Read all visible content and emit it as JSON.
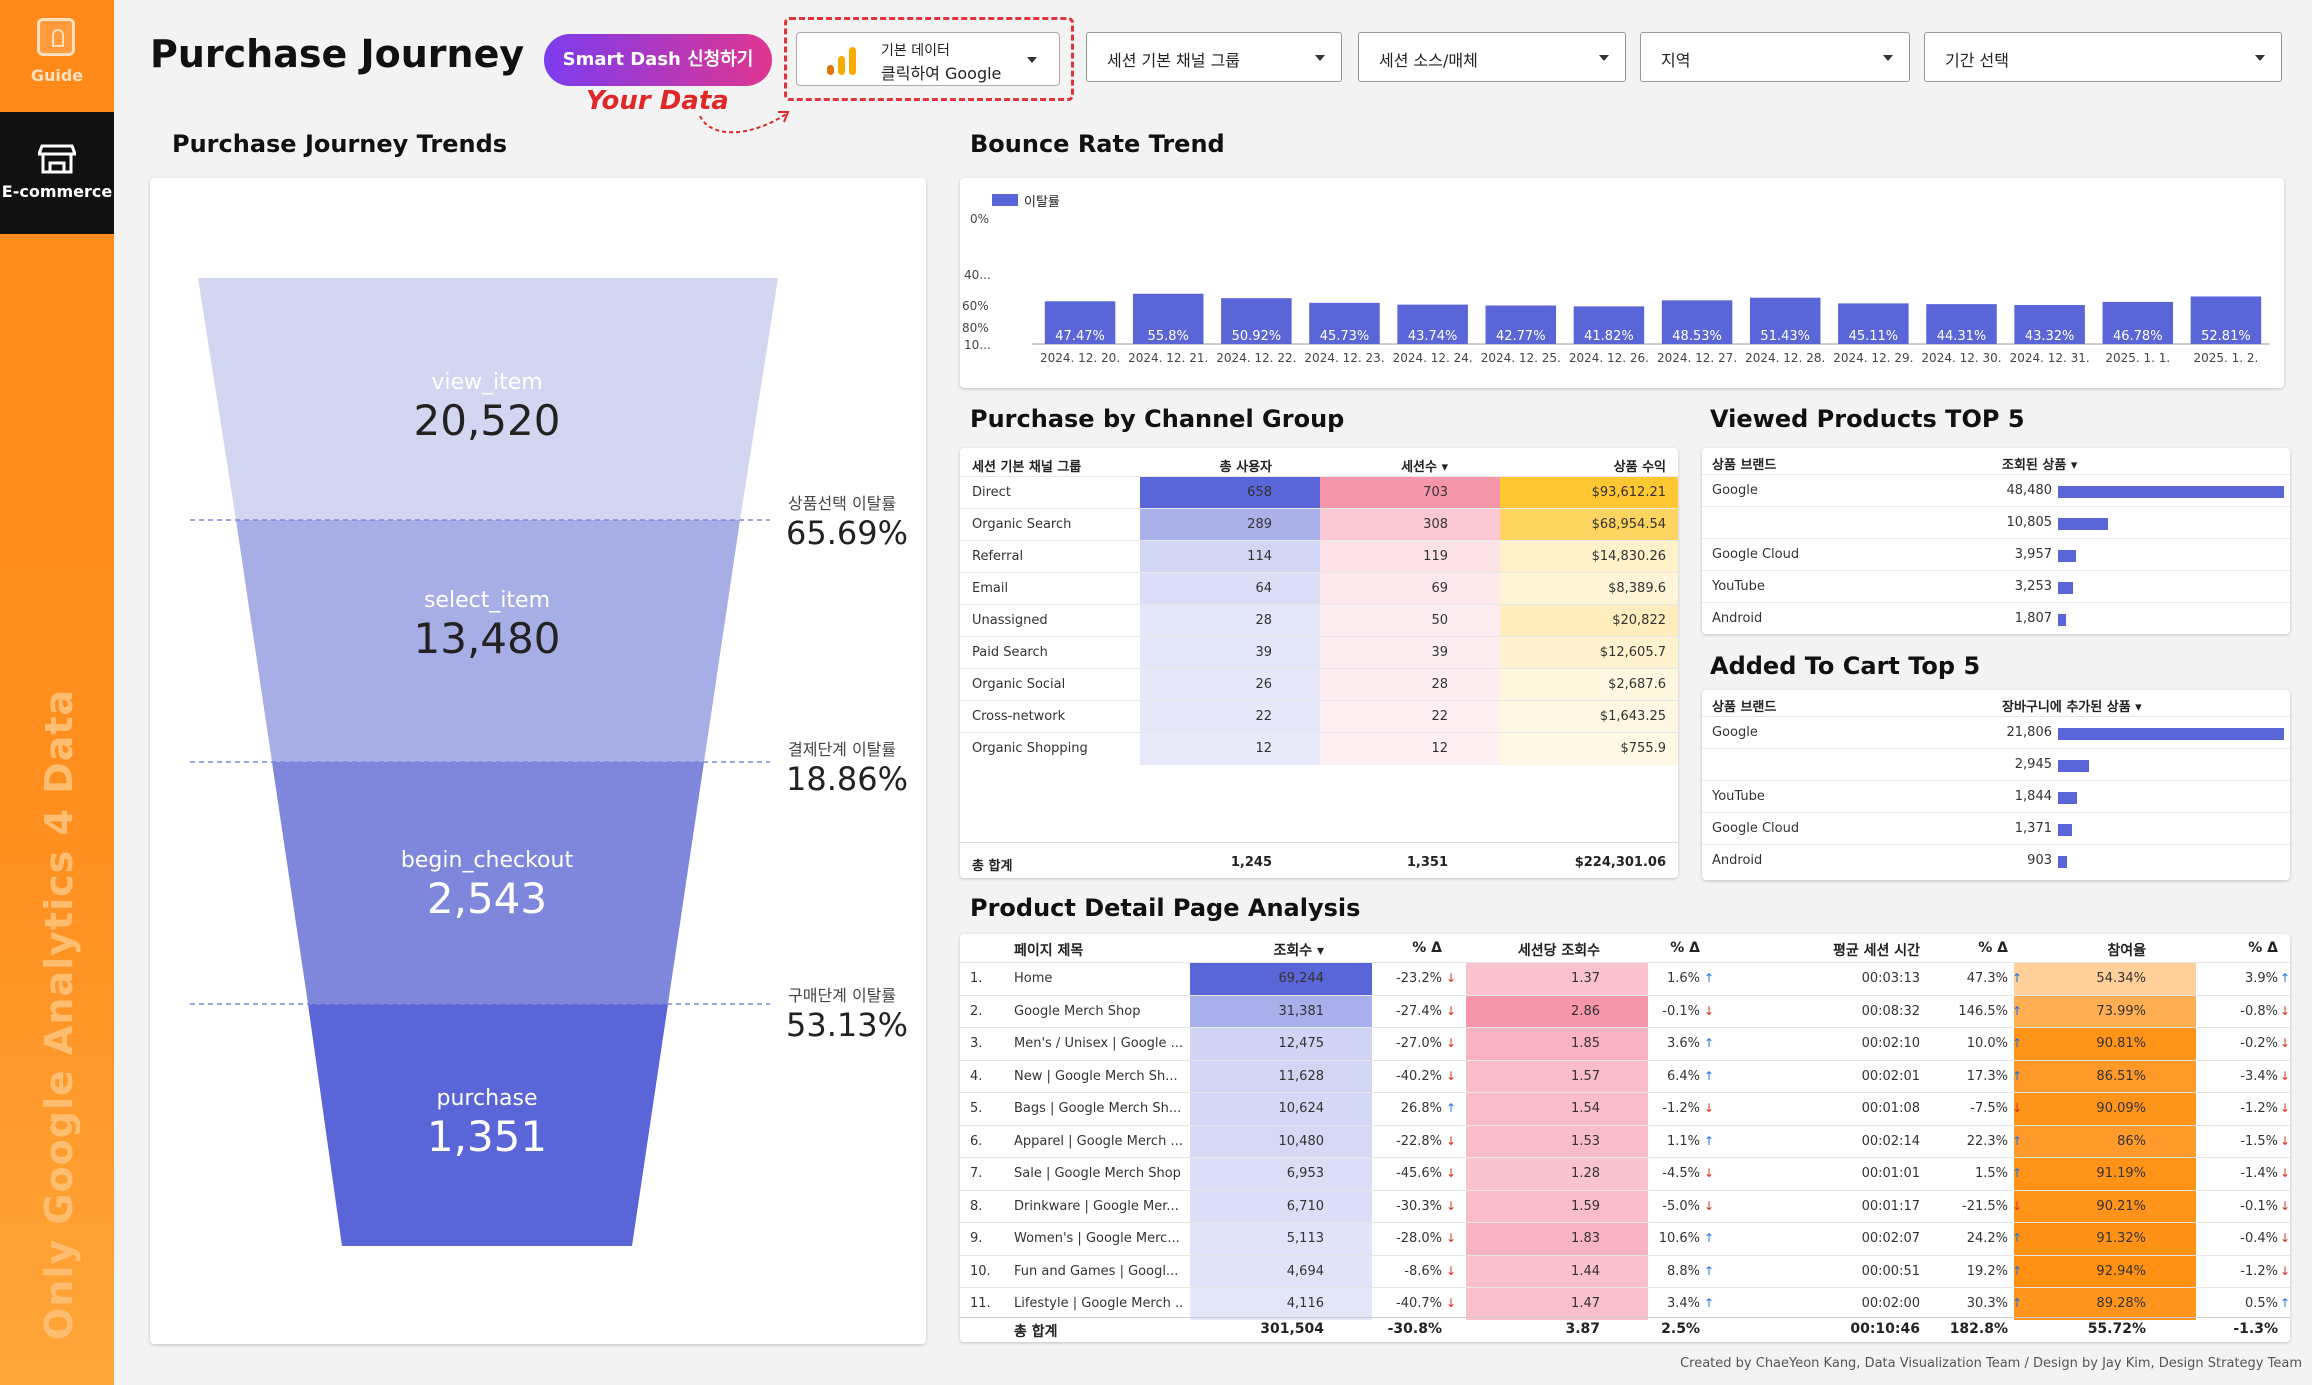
{
  "sidebar": {
    "guide_label": "Guide",
    "ecommerce_label": "E-commerce",
    "vertical_text": "Only Google Analytics 4 Data"
  },
  "header": {
    "title": "Purchase Journey",
    "smart_button": "Smart Dash 신청하기",
    "ga_line1": "기본 데이터",
    "ga_line2": "클릭하여 Google",
    "annotation": "Your Data",
    "filters": [
      "세션 기본 채널 그룹",
      "세션 소스/매체",
      "지역",
      "기간 선택"
    ]
  },
  "funnel": {
    "title": "Purchase Journey Trends",
    "stages": [
      {
        "label": "view_item",
        "value": "20,520",
        "color": "#d2d6f1"
      },
      {
        "label": "select_item",
        "value": "13,480",
        "color": "#a7ade5"
      },
      {
        "label": "begin_checkout",
        "value": "2,543",
        "color": "#7f87dc"
      },
      {
        "label": "purchase",
        "value": "1,351",
        "color": "#5a65d7"
      }
    ],
    "dropoffs": [
      {
        "label": "상품선택 이탈률",
        "value": "65.69%"
      },
      {
        "label": "결제단계 이탈률",
        "value": "18.86%"
      },
      {
        "label": "구매단계 이탈률",
        "value": "53.13%"
      }
    ]
  },
  "bounce": {
    "title": "Bounce Rate Trend",
    "legend": "이탈률",
    "y_ticks": [
      "0%",
      "40...",
      "60%",
      "80%",
      "10..."
    ],
    "color": "#5a65d7"
  },
  "chart_data": {
    "type": "bar",
    "title": "Bounce Rate Trend",
    "categories": [
      "2024. 12. 20.",
      "2024. 12. 21.",
      "2024. 12. 22.",
      "2024. 12. 23.",
      "2024. 12. 24.",
      "2024. 12. 25.",
      "2024. 12. 26.",
      "2024. 12. 27.",
      "2024. 12. 28.",
      "2024. 12. 29.",
      "2024. 12. 30.",
      "2024. 12. 31.",
      "2025. 1. 1.",
      "2025. 1. 2."
    ],
    "series": [
      {
        "name": "이탈률",
        "values": [
          47.47,
          55.8,
          50.92,
          45.73,
          43.74,
          42.77,
          41.82,
          48.53,
          51.43,
          45.11,
          44.31,
          43.32,
          46.78,
          52.81
        ]
      }
    ],
    "labels": [
      "47.47%",
      "55.8%",
      "50.92%",
      "45.73%",
      "43.74%",
      "42.77%",
      "41.82%",
      "48.53%",
      "51.43%",
      "45.11%",
      "44.31%",
      "43.32%",
      "46.78%",
      "52.81%"
    ],
    "ylim": [
      0,
      100
    ],
    "legend": "top-left"
  },
  "channels": {
    "title": "Purchase by Channel Group",
    "headers": [
      "세션 기본 채널 그룹",
      "총 사용자",
      "세션수 ▾",
      "상품 수익"
    ],
    "rows": [
      [
        "Direct",
        "658",
        "703",
        "$93,612.21"
      ],
      [
        "Organic Search",
        "289",
        "308",
        "$68,954.54"
      ],
      [
        "Referral",
        "114",
        "119",
        "$14,830.26"
      ],
      [
        "Email",
        "64",
        "69",
        "$8,389.6"
      ],
      [
        "Unassigned",
        "28",
        "50",
        "$20,822"
      ],
      [
        "Paid Search",
        "39",
        "39",
        "$12,605.7"
      ],
      [
        "Organic Social",
        "26",
        "28",
        "$2,687.6"
      ],
      [
        "Cross-network",
        "22",
        "22",
        "$1,643.25"
      ],
      [
        "Organic Shopping",
        "12",
        "12",
        "$755.9"
      ]
    ],
    "total": [
      "총 합계",
      "1,245",
      "1,351",
      "$224,301.06"
    ],
    "color_users": "#5a65d7",
    "color_sessions": "#f6aab8",
    "color_revenue": "#ffd24d"
  },
  "viewed": {
    "title": "Viewed Products TOP 5",
    "headers": [
      "상품 브랜드",
      "조회된 상품 ▾"
    ],
    "rows": [
      [
        "Google",
        "48,480",
        48480
      ],
      [
        "",
        "10,805",
        10805
      ],
      [
        "Google Cloud",
        "3,957",
        3957
      ],
      [
        "YouTube",
        "3,253",
        3253
      ],
      [
        "Android",
        "1,807",
        1807
      ]
    ]
  },
  "cart": {
    "title": "Added To Cart Top 5",
    "headers": [
      "상품 브랜드",
      "장바구니에 추가된 상품 ▾"
    ],
    "rows": [
      [
        "Google",
        "21,806",
        21806
      ],
      [
        "",
        "2,945",
        2945
      ],
      [
        "YouTube",
        "1,844",
        1844
      ],
      [
        "Google Cloud",
        "1,371",
        1371
      ],
      [
        "Android",
        "903",
        903
      ]
    ]
  },
  "pdp": {
    "title": "Product Detail Page Analysis",
    "headers": [
      "페이지 제목",
      "조회수 ▾",
      "% Δ",
      "세션당 조회수",
      "% Δ",
      "평균 세션 시간",
      "% Δ",
      "참여율",
      "% Δ"
    ],
    "rows": [
      [
        "1.",
        "Home",
        "69,244",
        "-23.2%",
        "1.37",
        "1.6%",
        "00:03:13",
        "47.3%",
        "54.34%",
        "3.9%"
      ],
      [
        "2.",
        "Google Merch Shop",
        "31,381",
        "-27.4%",
        "2.86",
        "-0.1%",
        "00:08:32",
        "146.5%",
        "73.99%",
        "-0.8%"
      ],
      [
        "3.",
        "Men's / Unisex | Google ...",
        "12,475",
        "-27.0%",
        "1.85",
        "3.6%",
        "00:02:10",
        "10.0%",
        "90.81%",
        "-0.2%"
      ],
      [
        "4.",
        "New | Google Merch Sh...",
        "11,628",
        "-40.2%",
        "1.57",
        "6.4%",
        "00:02:01",
        "17.3%",
        "86.51%",
        "-3.4%"
      ],
      [
        "5.",
        "Bags | Google Merch Sh...",
        "10,624",
        "26.8%",
        "1.54",
        "-1.2%",
        "00:01:08",
        "-7.5%",
        "90.09%",
        "-1.2%"
      ],
      [
        "6.",
        "Apparel | Google Merch ...",
        "10,480",
        "-22.8%",
        "1.53",
        "1.1%",
        "00:02:14",
        "22.3%",
        "86%",
        "-1.5%"
      ],
      [
        "7.",
        "Sale | Google Merch Shop",
        "6,953",
        "-45.6%",
        "1.28",
        "-4.5%",
        "00:01:01",
        "1.5%",
        "91.19%",
        "-1.4%"
      ],
      [
        "8.",
        "Drinkware | Google Mer...",
        "6,710",
        "-30.3%",
        "1.59",
        "-5.0%",
        "00:01:17",
        "-21.5%",
        "90.21%",
        "-0.1%"
      ],
      [
        "9.",
        "Women's | Google Merc...",
        "5,113",
        "-28.0%",
        "1.83",
        "10.6%",
        "00:02:07",
        "24.2%",
        "91.32%",
        "-0.4%"
      ],
      [
        "10.",
        "Fun and Games | Googl...",
        "4,694",
        "-8.6%",
        "1.44",
        "8.8%",
        "00:00:51",
        "19.2%",
        "92.94%",
        "-1.2%"
      ],
      [
        "11.",
        "Lifestyle | Google Merch ...",
        "4,116",
        "-40.7%",
        "1.47",
        "3.4%",
        "00:02:00",
        "30.3%",
        "89.28%",
        "0.5%"
      ]
    ],
    "total": [
      "총 합계",
      "301,504",
      "-30.8%",
      "3.87",
      "2.5%",
      "00:10:46",
      "182.8%",
      "55.72%",
      "-1.3%"
    ]
  },
  "footer": "Created by ChaeYeon Kang, Data Visualization Team / Design by Jay Kim, Design Strategy Team"
}
